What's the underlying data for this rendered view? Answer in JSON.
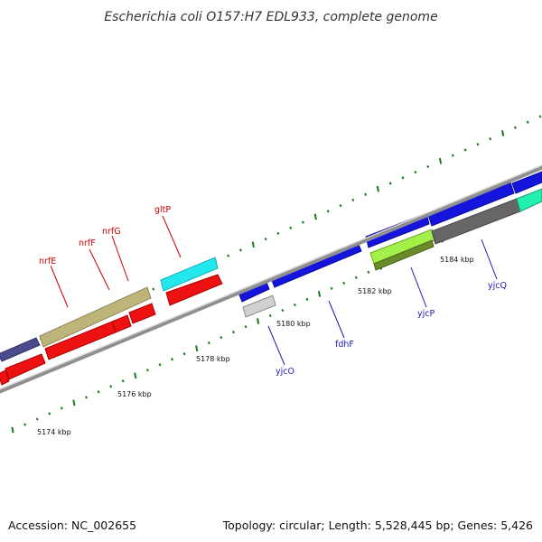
{
  "title": "Escherichia coli O157:H7 EDL933, complete genome",
  "footer": {
    "accession": "Accession: NC_002655",
    "summary": "Topology: circular; Length: 5,528,445 bp; Genes: 5,426"
  },
  "colors": {
    "backbone": "#8f8f8f",
    "tick": "#1a7a1a",
    "label_red": "#cc0000",
    "label_blue": "#1a1ab3"
  },
  "tick_labels": [
    "5174 kbp",
    "5176 kbp",
    "5178 kbp",
    "5180 kbp",
    "5182 kbp",
    "5184 kbp"
  ],
  "genes": [
    "nrfE",
    "nrfF",
    "nrfG",
    "gltP",
    "yjcO",
    "fdhF",
    "yjcP",
    "yjcQ"
  ]
}
